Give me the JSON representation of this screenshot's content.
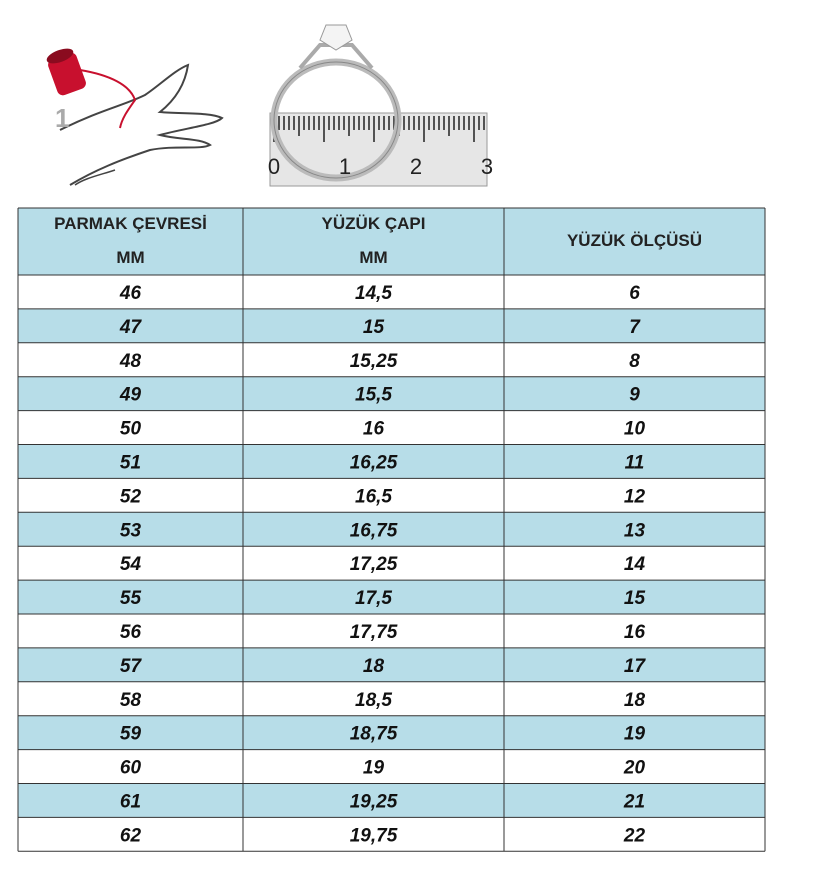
{
  "illustration": {
    "step_label": "1",
    "ruler_labels": [
      "0",
      "1",
      "2",
      "3"
    ]
  },
  "table": {
    "headers": [
      [
        "PARMAK ÇEVRESİ",
        "MM"
      ],
      [
        "YÜZÜK ÇAPI",
        "MM"
      ],
      [
        "YÜZÜK ÖLÇÜSÜ"
      ]
    ],
    "rows": [
      [
        "46",
        "14,5",
        "6"
      ],
      [
        "47",
        "15",
        "7"
      ],
      [
        "48",
        "15,25",
        "8"
      ],
      [
        "49",
        "15,5",
        "9"
      ],
      [
        "50",
        "16",
        "10"
      ],
      [
        "51",
        "16,25",
        "11"
      ],
      [
        "52",
        "16,5",
        "12"
      ],
      [
        "53",
        "16,75",
        "13"
      ],
      [
        "54",
        "17,25",
        "14"
      ],
      [
        "55",
        "17,5",
        "15"
      ],
      [
        "56",
        "17,75",
        "16"
      ],
      [
        "57",
        "18",
        "17"
      ],
      [
        "58",
        "18,5",
        "18"
      ],
      [
        "59",
        "18,75",
        "19"
      ],
      [
        "60",
        "19",
        "20"
      ],
      [
        "61",
        "19,25",
        "21"
      ],
      [
        "62",
        "19,75",
        "22"
      ]
    ]
  }
}
